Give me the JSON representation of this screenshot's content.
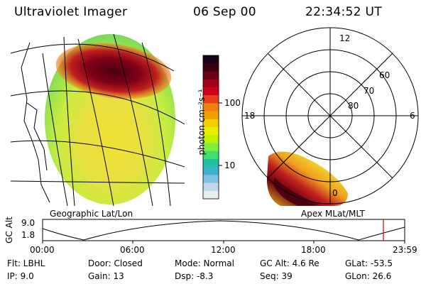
{
  "header": {
    "title": "Ultraviolet Imager",
    "date": "06 Sep 00",
    "time": "22:34:52 UT"
  },
  "colorbar": {
    "unit_label": "photon cm⁻²s⁻¹",
    "ticks": [
      "100",
      "10"
    ],
    "colors": [
      "#1a001a",
      "#3a0010",
      "#6a0010",
      "#a0001a",
      "#d0001a",
      "#e8401a",
      "#f08010",
      "#f0a000",
      "#f0d000",
      "#e8f000",
      "#c0f000",
      "#80f040",
      "#40e070",
      "#20c0a0",
      "#40b0d0",
      "#80c0e0",
      "#c0d8e8",
      "#e8eef0"
    ]
  },
  "left_panel": {
    "caption": "Geographic Lat/Lon"
  },
  "right_panel": {
    "caption": "Apex MLat/MLT",
    "hour_labels": [
      "12",
      "18",
      "6",
      "0"
    ],
    "lat_labels": [
      "60",
      "70",
      "80"
    ]
  },
  "altitude_plot": {
    "axis_label": "GC Alt",
    "y_ticks": [
      "9.0",
      "1.8"
    ],
    "x_ticks": [
      "00:00",
      "06:00",
      "12:00",
      "18:00",
      "23:59"
    ],
    "marker_color": "#cc0000"
  },
  "status": {
    "row1": {
      "flt": "Flt: LBHL",
      "door": "Door: Closed",
      "mode": "Mode: Normal",
      "gc_alt": "GC Alt: 4.6 Re",
      "glat": "GLat:  -53.5"
    },
    "row2": {
      "ip": "IP:  9.0",
      "gain": "Gain: 13",
      "dsp": "Dsp:    -8.3",
      "seq": "Seq: 39",
      "glon": "GLon:  26.6"
    }
  }
}
